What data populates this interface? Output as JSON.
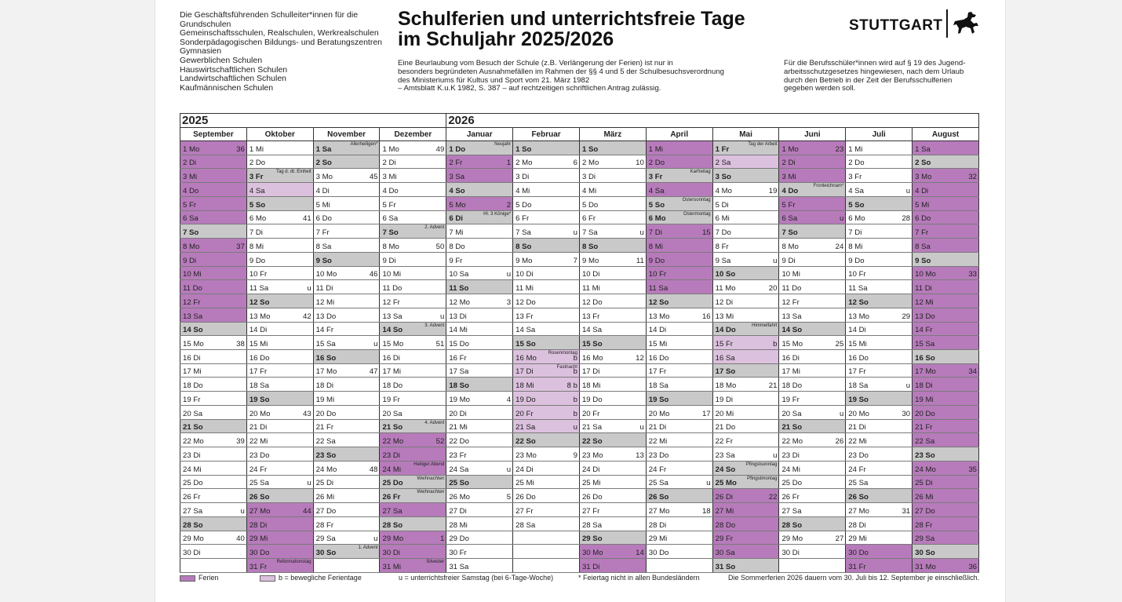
{
  "header": {
    "addressees": [
      "Die Geschäftsführenden Schulleiter*innen für die",
      "Grundschulen",
      "Gemeinschaftsschulen, Realschulen, Werkrealschulen",
      "Sonderpädagogischen Bildungs- und Beratungszentren",
      "Gymnasien",
      "Gewerblichen Schulen",
      "Hauswirtschaftlichen Schulen",
      "Landwirtschaftlichen Schulen",
      "Kaufmännischen Schulen"
    ],
    "title_line1": "Schulferien und unterrichtsfreie Tage",
    "title_line2": "im Schuljahr 2025/2026",
    "notice": [
      "Eine Beurlaubung vom Besuch der Schule (z.B. Verlängerung der Ferien) ist nur in",
      "besonders begründeten Ausnahmefällen im Rahmen der §§ 4 und 5 der Schulbesuchsverordnung",
      "des Ministeriums für Kultus und Sport vom 21. März 1982",
      "– Amtsblatt K.u.K 1982, S. 387 – auf rechtzeitigen schriftlichen Antrag zulässig."
    ],
    "berufsschule_notice": [
      "Für die Berufsschüler*innen wird auf § 19 des Jugend-",
      "arbeitsschutzgesetzes hingewiesen, nach dem Urlaub",
      "durch den Betrieb in der Zeit der Berufsschulferien",
      "gegeben werden soll."
    ],
    "logo_text": "STUTTGART",
    "logo_icon": "horse-icon"
  },
  "colors": {
    "ferien": "#b77bbb",
    "bewegliche_ferientage": "#dcc1de",
    "sonn_feiertag": "#c9c9c9"
  },
  "years": [
    "2025",
    "2026"
  ],
  "weekdays": [
    "Mo",
    "Di",
    "Mi",
    "Do",
    "Fr",
    "Sa",
    "So"
  ],
  "months": [
    {
      "name": "September",
      "first": "Mo",
      "count": 30,
      "ferien": [
        1,
        2,
        3,
        4,
        5,
        6,
        8,
        9,
        10,
        11,
        12,
        13
      ],
      "bewegl": [],
      "holiday": [],
      "right": {
        "1": "36",
        "8": "37",
        "15": "38",
        "22": "39",
        "29": "40",
        "27": "u"
      },
      "notes": {}
    },
    {
      "name": "Oktober",
      "first": "Mi",
      "count": 31,
      "ferien": [
        27,
        28,
        29,
        30,
        31
      ],
      "bewegl": [
        4
      ],
      "holiday": [
        3
      ],
      "right": {
        "6": "41",
        "13": "42",
        "20": "43",
        "27": "44",
        "11": "u",
        "25": "u"
      },
      "notes": {
        "3": "Tag d. dt. Einheit",
        "31": "Reformationstag"
      }
    },
    {
      "name": "November",
      "first": "Sa",
      "count": 30,
      "ferien": [],
      "bewegl": [],
      "holiday": [
        1
      ],
      "right": {
        "3": "45",
        "10": "46",
        "17": "47",
        "24": "48",
        "15": "u",
        "29": "u"
      },
      "notes": {
        "1": "Allerheiligen*",
        "30": "1. Advent"
      }
    },
    {
      "name": "Dezember",
      "first": "Mo",
      "count": 31,
      "ferien": [
        22,
        23,
        24,
        27,
        29,
        30,
        31
      ],
      "bewegl": [],
      "holiday": [
        25,
        26
      ],
      "right": {
        "1": "49",
        "8": "50",
        "15": "51",
        "22": "52",
        "29": "1",
        "13": "u"
      },
      "notes": {
        "7": "2. Advent",
        "14": "3. Advent",
        "21": "4. Advent",
        "24": "Heiliger Abend",
        "25": "Weihnachten",
        "26": "Weihnachten",
        "31": "Silvester"
      }
    },
    {
      "name": "Januar",
      "first": "Do",
      "count": 31,
      "ferien": [
        2,
        3,
        5
      ],
      "bewegl": [],
      "holiday": [
        1,
        6
      ],
      "right": {
        "2": "1",
        "5": "2",
        "12": "3",
        "19": "4",
        "26": "5",
        "10": "u",
        "24": "u"
      },
      "notes": {
        "1": "Neujahr",
        "6": "Hl. 3 Könige*"
      }
    },
    {
      "name": "Februar",
      "first": "So",
      "count": 28,
      "ferien": [],
      "bewegl": [
        16,
        17,
        18,
        19,
        20,
        21
      ],
      "holiday": [],
      "right": {
        "2": "6",
        "9": "7",
        "16": "b",
        "17": "b",
        "18": "8 b",
        "19": "b",
        "20": "b",
        "21": "u",
        "23": "9",
        "7": "u"
      },
      "notes": {
        "16": "Rosenmontag",
        "17": "Fastnacht"
      }
    },
    {
      "name": "März",
      "first": "So",
      "count": 31,
      "ferien": [
        30,
        31
      ],
      "bewegl": [],
      "holiday": [],
      "right": {
        "2": "10",
        "9": "11",
        "16": "12",
        "23": "13",
        "30": "14",
        "7": "u",
        "21": "u"
      },
      "notes": {}
    },
    {
      "name": "April",
      "first": "Mi",
      "count": 30,
      "ferien": [
        1,
        2,
        4,
        7,
        8,
        9,
        10,
        11
      ],
      "bewegl": [],
      "holiday": [
        3,
        6
      ],
      "right": {
        "7": "15",
        "13": "16",
        "20": "17",
        "27": "18",
        "25": "u"
      },
      "notes": {
        "3": "Karfreitag",
        "5": "Ostersonntag",
        "6": "Ostermontag"
      }
    },
    {
      "name": "Mai",
      "first": "Fr",
      "count": 31,
      "ferien": [
        26,
        27,
        28,
        29,
        30
      ],
      "bewegl": [
        2,
        15,
        16
      ],
      "holiday": [
        1,
        14,
        25
      ],
      "right": {
        "4": "19",
        "11": "20",
        "18": "21",
        "26": "22",
        "9": "u",
        "15": "b",
        "23": "u"
      },
      "notes": {
        "1": "Tag der Arbeit",
        "14": "Himmelfahrt",
        "24": "Pfingstsonntag",
        "25": "Pfingstmontag"
      }
    },
    {
      "name": "Juni",
      "first": "Mo",
      "count": 30,
      "ferien": [
        1,
        2,
        3,
        5,
        6
      ],
      "bewegl": [],
      "holiday": [
        4
      ],
      "right": {
        "1": "23",
        "8": "24",
        "15": "25",
        "22": "26",
        "29": "27",
        "6": "u",
        "20": "u"
      },
      "notes": {
        "4": "Fronleichnam*"
      }
    },
    {
      "name": "Juli",
      "first": "Mi",
      "count": 31,
      "ferien": [
        30,
        31
      ],
      "bewegl": [],
      "holiday": [],
      "right": {
        "6": "28",
        "13": "29",
        "20": "30",
        "27": "31",
        "4": "u",
        "18": "u"
      },
      "notes": {}
    },
    {
      "name": "August",
      "first": "Sa",
      "count": 31,
      "ferien": [
        1,
        3,
        4,
        5,
        6,
        7,
        8,
        10,
        11,
        12,
        13,
        14,
        15,
        17,
        18,
        19,
        20,
        21,
        22,
        24,
        25,
        26,
        27,
        28,
        29,
        31
      ],
      "bewegl": [],
      "holiday": [],
      "right": {
        "3": "32",
        "10": "33",
        "17": "34",
        "24": "35",
        "31": "36"
      },
      "notes": {}
    }
  ],
  "legend": {
    "ferien": "Ferien",
    "bewegliche": "b = bewegliche Ferientage",
    "unterrichtsfrei": "u = unterrichtsfreier Samstag (bei 6-Tage-Woche)",
    "feiertag": "* Feiertag nicht in allen Bundesländern",
    "sommerferien": "Die Sommerferien 2026 dauern vom 30. Juli bis 12. September je einschließlich."
  }
}
